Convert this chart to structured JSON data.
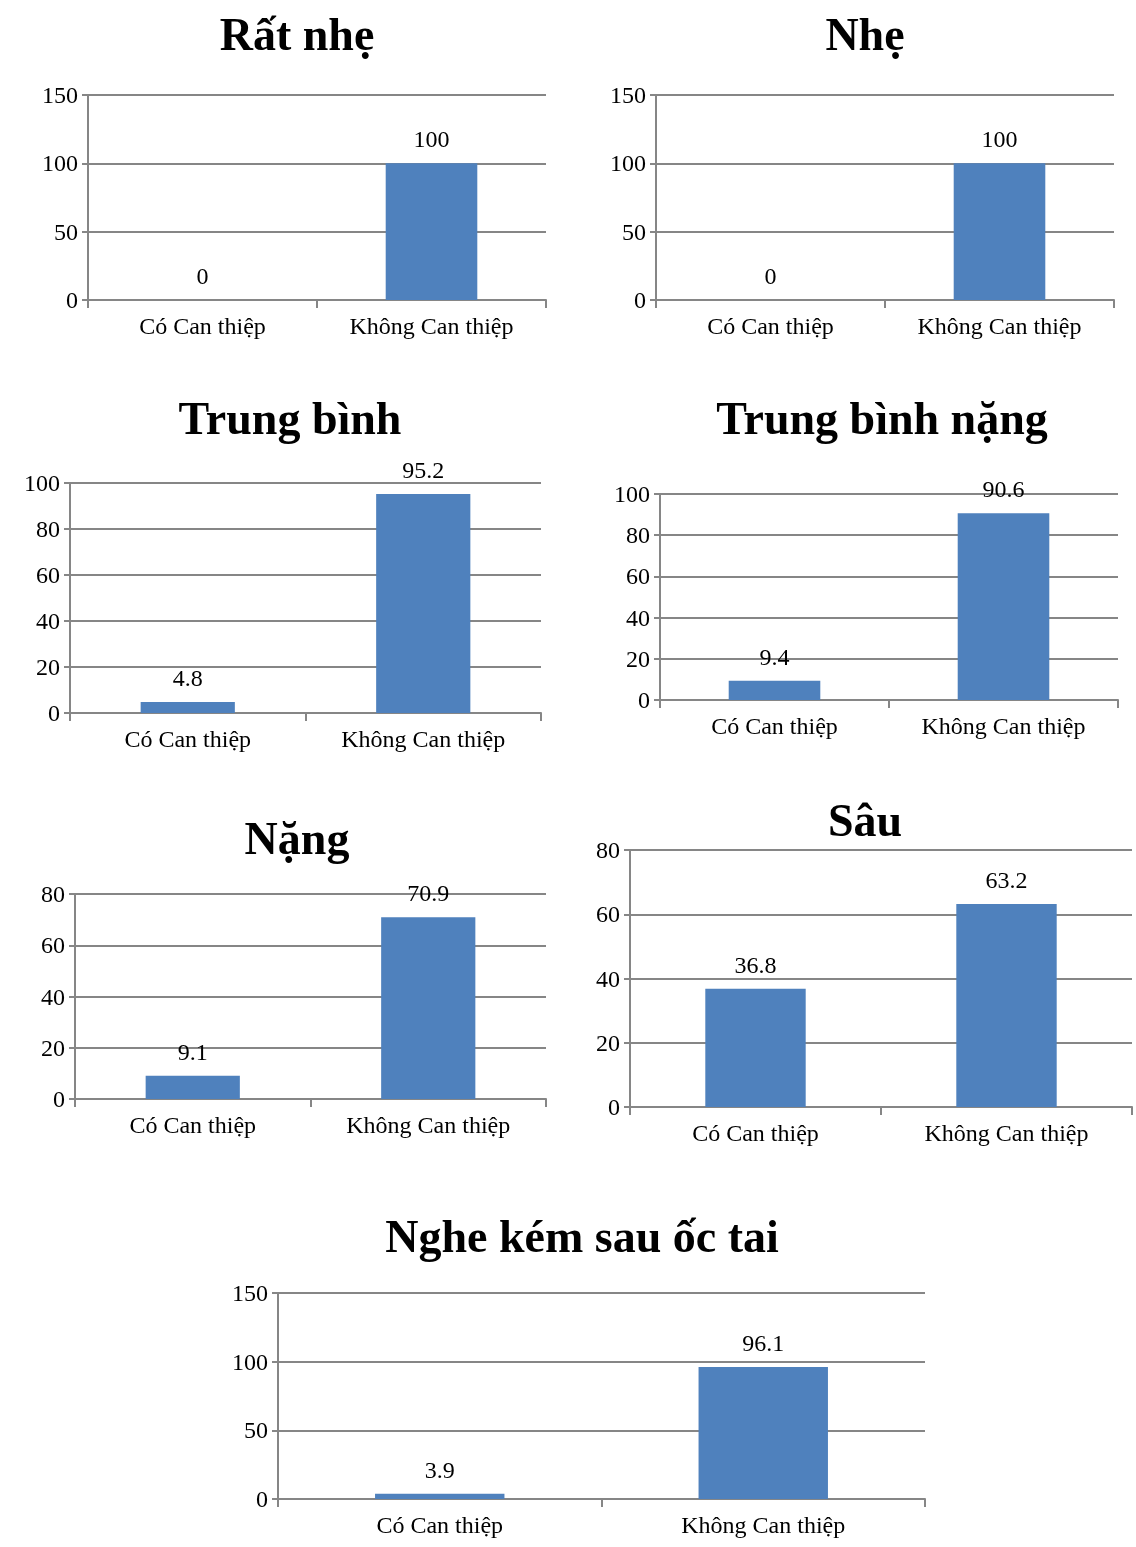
{
  "chart_data": [
    {
      "type": "bar",
      "title": "Rất nhẹ",
      "categories": [
        "Có Can thiệp",
        "Không Can thiệp"
      ],
      "values": [
        0,
        100
      ],
      "color": "#4f81bd",
      "ylim": [
        0,
        150
      ],
      "yticks": [
        0,
        50,
        100,
        150
      ],
      "grid": "y",
      "data_labels": true
    },
    {
      "type": "bar",
      "title": "Nhẹ",
      "categories": [
        "Có Can thiệp",
        "Không Can thiệp"
      ],
      "values": [
        0,
        100
      ],
      "color": "#4f81bd",
      "ylim": [
        0,
        150
      ],
      "yticks": [
        0,
        50,
        100,
        150
      ],
      "grid": "y",
      "data_labels": true
    },
    {
      "type": "bar",
      "title": "Trung bình",
      "categories": [
        "Có Can thiệp",
        "Không Can thiệp"
      ],
      "values": [
        4.8,
        95.2
      ],
      "color": "#4f81bd",
      "ylim": [
        0,
        100
      ],
      "yticks": [
        0,
        20,
        40,
        60,
        80,
        100
      ],
      "grid": "y",
      "data_labels": true
    },
    {
      "type": "bar",
      "title": "Trung bình nặng",
      "categories": [
        "Có Can thiệp",
        "Không Can thiệp"
      ],
      "values": [
        9.4,
        90.6
      ],
      "color": "#4f81bd",
      "ylim": [
        0,
        100
      ],
      "yticks": [
        0,
        20,
        40,
        60,
        80,
        100
      ],
      "grid": "y",
      "data_labels": true
    },
    {
      "type": "bar",
      "title": "Nặng",
      "categories": [
        "Có Can thiệp",
        "Không Can thiệp"
      ],
      "values": [
        9.1,
        70.9
      ],
      "color": "#4f81bd",
      "ylim": [
        0,
        80
      ],
      "yticks": [
        0,
        20,
        40,
        60,
        80
      ],
      "grid": "y",
      "data_labels": true
    },
    {
      "type": "bar",
      "title": "Sâu",
      "categories": [
        "Có Can thiệp",
        "Không Can thiệp"
      ],
      "values": [
        36.8,
        63.2
      ],
      "color": "#4f81bd",
      "ylim": [
        0,
        80
      ],
      "yticks": [
        0,
        20,
        40,
        60,
        80
      ],
      "grid": "y",
      "data_labels": true
    },
    {
      "type": "bar",
      "title": "Nghe kém sau ốc tai",
      "categories": [
        "Có Can thiệp",
        "Không Can thiệp"
      ],
      "values": [
        3.9,
        96.1
      ],
      "color": "#4f81bd",
      "ylim": [
        0,
        150
      ],
      "yticks": [
        0,
        50,
        100,
        150
      ],
      "grid": "y",
      "data_labels": true
    }
  ]
}
